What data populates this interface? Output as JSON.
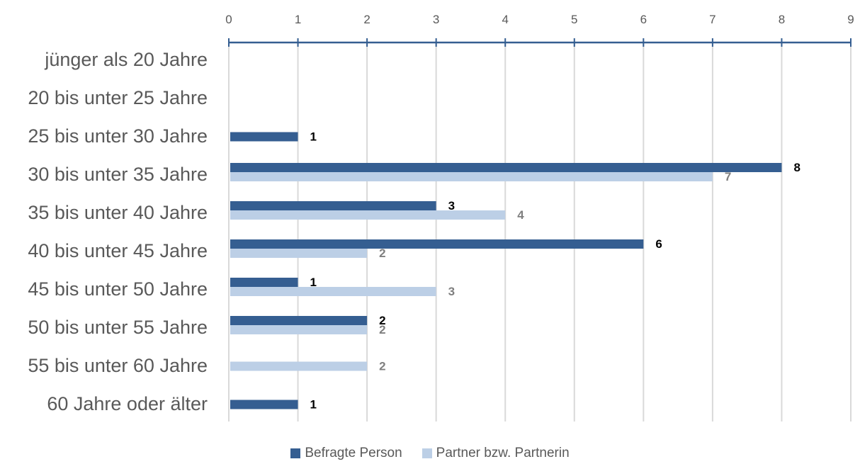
{
  "chart_data": {
    "type": "bar",
    "orientation": "horizontal",
    "categories": [
      "jünger als 20 Jahre",
      "20 bis unter 25 Jahre",
      "25 bis unter 30 Jahre",
      "30 bis unter 35 Jahre",
      "35 bis unter 40 Jahre",
      "40 bis unter 45 Jahre",
      "45 bis unter 50 Jahre",
      "50 bis unter 55 Jahre",
      "55 bis unter 60 Jahre",
      "60 Jahre oder älter"
    ],
    "series": [
      {
        "name": "Befragte Person",
        "color": "#355e91",
        "label_color": "#000000",
        "values": [
          null,
          null,
          1,
          8,
          3,
          6,
          1,
          2,
          null,
          1
        ]
      },
      {
        "name": "Partner bzw. Partnerin",
        "color": "#bccfe6",
        "label_color": "#7f7f7f",
        "values": [
          null,
          null,
          null,
          7,
          4,
          2,
          3,
          2,
          2,
          null
        ]
      }
    ],
    "xlim": [
      0,
      9
    ],
    "xticks": [
      0,
      1,
      2,
      3,
      4,
      5,
      6,
      7,
      8,
      9
    ],
    "axis_position": "top",
    "grid": true,
    "legend_position": "bottom",
    "data_labels": true,
    "title": "",
    "xlabel": "",
    "ylabel": ""
  }
}
